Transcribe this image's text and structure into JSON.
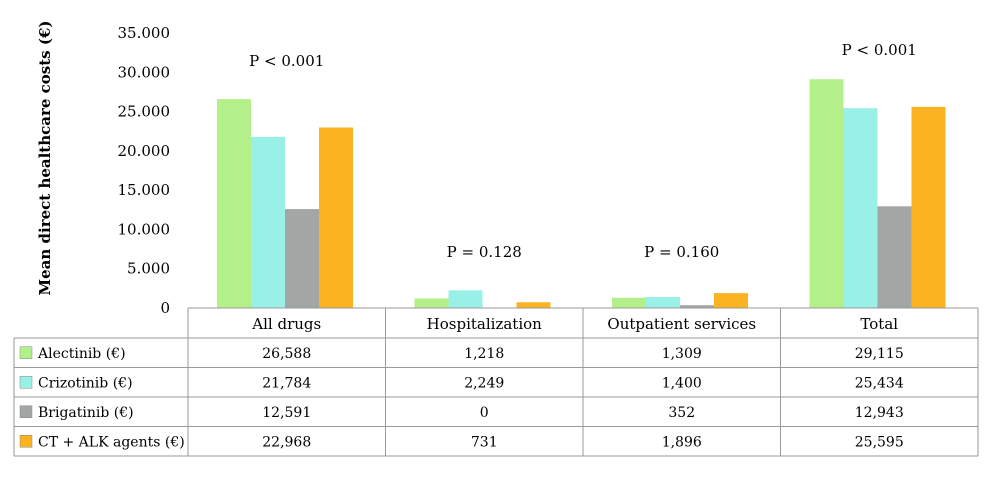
{
  "chart_data": {
    "type": "bar",
    "ylabel": "Mean direct healthcare costs (€)",
    "ylim": [
      0,
      35000
    ],
    "yticks": [
      0,
      5000,
      10000,
      15000,
      20000,
      25000,
      30000,
      35000
    ],
    "ytick_labels": [
      "0",
      "5.000",
      "10.000",
      "15.000",
      "20.000",
      "25.000",
      "30.000",
      "35.000"
    ],
    "categories": [
      "All drugs",
      "Hospitalization",
      "Outpatient services",
      "Total"
    ],
    "p_values": [
      "P < 0.001",
      "P = 0.128",
      "P = 0.160",
      "P < 0.001"
    ],
    "series": [
      {
        "name": "Alectinib (€)",
        "color": "#b3f08a",
        "values": [
          26588,
          1218,
          1309,
          29115
        ],
        "labels": [
          "26,588",
          "1,218",
          "1,309",
          "29,115"
        ]
      },
      {
        "name": "Crizotinib (€)",
        "color": "#99f0e6",
        "values": [
          21784,
          2249,
          1400,
          25434
        ],
        "labels": [
          "21,784",
          "2,249",
          "1,400",
          "25,434"
        ]
      },
      {
        "name": "Brigatinib (€)",
        "color": "#a2a6a4",
        "values": [
          12591,
          0,
          352,
          12943
        ],
        "labels": [
          "12,591",
          "0",
          "352",
          "12,943"
        ]
      },
      {
        "name": "CT + ALK agents (€)",
        "color": "#fcb322",
        "values": [
          22968,
          731,
          1896,
          25595
        ],
        "labels": [
          "22,968",
          "731",
          "1,896",
          "25,595"
        ]
      }
    ],
    "grid": false,
    "legend": "data-table-below"
  }
}
